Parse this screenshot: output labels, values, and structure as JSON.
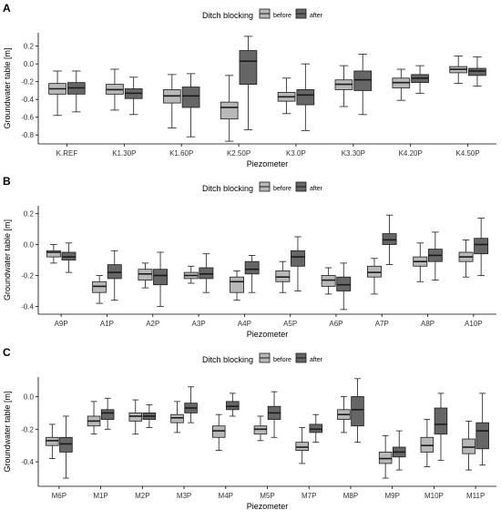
{
  "legend_title": "Ditch blocking",
  "legend_labels": [
    "before",
    "after"
  ],
  "colors": {
    "before": "#b8b8b8",
    "after": "#666666",
    "stroke": "#1a1a1a",
    "axis": "#000000"
  },
  "chart_data": [
    {
      "panel": "A",
      "type": "boxplot",
      "xlabel": "Piezometer",
      "ylabel": "Groundwater table [m]",
      "ylim": [
        -0.9,
        0.35
      ],
      "yticks": [
        0.2,
        0.0,
        -0.2,
        -0.4,
        -0.6,
        -0.8
      ],
      "categories": [
        "K.REF",
        "K1.30P",
        "K1.60P",
        "K2.50P",
        "K3.0P",
        "K3.30P",
        "K4.20P",
        "K4.50P"
      ],
      "series": [
        {
          "name": "before",
          "boxes": [
            [
              -0.58,
              -0.34,
              -0.28,
              -0.22,
              -0.08
            ],
            [
              -0.52,
              -0.34,
              -0.29,
              -0.23,
              -0.06
            ],
            [
              -0.72,
              -0.44,
              -0.36,
              -0.29,
              -0.12
            ],
            [
              -0.87,
              -0.62,
              -0.49,
              -0.43,
              -0.13
            ],
            [
              -0.56,
              -0.42,
              -0.37,
              -0.32,
              -0.16
            ],
            [
              -0.48,
              -0.29,
              -0.23,
              -0.18,
              -0.02
            ],
            [
              -0.41,
              -0.27,
              -0.21,
              -0.16,
              -0.06
            ],
            [
              -0.22,
              -0.1,
              -0.06,
              -0.03,
              0.09
            ]
          ]
        },
        {
          "name": "after",
          "boxes": [
            [
              -0.54,
              -0.34,
              -0.27,
              -0.21,
              -0.08
            ],
            [
              -0.57,
              -0.39,
              -0.33,
              -0.28,
              -0.15
            ],
            [
              -0.82,
              -0.49,
              -0.36,
              -0.26,
              -0.11
            ],
            [
              -0.74,
              -0.23,
              0.03,
              0.15,
              0.31
            ],
            [
              -0.75,
              -0.46,
              -0.35,
              -0.29,
              0.0
            ],
            [
              -0.57,
              -0.3,
              -0.18,
              -0.08,
              0.11
            ],
            [
              -0.33,
              -0.21,
              -0.16,
              -0.12,
              -0.02
            ],
            [
              -0.25,
              -0.13,
              -0.08,
              -0.05,
              0.08
            ]
          ]
        }
      ]
    },
    {
      "panel": "B",
      "type": "boxplot",
      "xlabel": "Piezometer",
      "ylabel": "Groundwater table [m]",
      "ylim": [
        -0.45,
        0.25
      ],
      "yticks": [
        0.2,
        0.0,
        -0.2,
        -0.4
      ],
      "categories": [
        "A9P",
        "A1P",
        "A2P",
        "A3P",
        "A4P",
        "A5P",
        "A6P",
        "A7P",
        "A8P",
        "A10P"
      ],
      "series": [
        {
          "name": "before",
          "boxes": [
            [
              -0.12,
              -0.08,
              -0.05,
              -0.04,
              0.0
            ],
            [
              -0.38,
              -0.31,
              -0.27,
              -0.24,
              -0.2
            ],
            [
              -0.28,
              -0.23,
              -0.19,
              -0.16,
              -0.12
            ],
            [
              -0.25,
              -0.22,
              -0.2,
              -0.18,
              -0.14
            ],
            [
              -0.36,
              -0.31,
              -0.24,
              -0.21,
              -0.17
            ],
            [
              -0.31,
              -0.24,
              -0.21,
              -0.17,
              -0.11
            ],
            [
              -0.32,
              -0.27,
              -0.23,
              -0.2,
              -0.15
            ],
            [
              -0.32,
              -0.21,
              -0.18,
              -0.14,
              -0.09
            ],
            [
              -0.24,
              -0.14,
              -0.11,
              -0.08,
              0.01
            ],
            [
              -0.21,
              -0.11,
              -0.08,
              -0.05,
              0.03
            ]
          ]
        },
        {
          "name": "after",
          "boxes": [
            [
              -0.18,
              -0.1,
              -0.08,
              -0.05,
              0.01
            ],
            [
              -0.36,
              -0.22,
              -0.18,
              -0.13,
              -0.04
            ],
            [
              -0.4,
              -0.26,
              -0.2,
              -0.16,
              -0.05
            ],
            [
              -0.31,
              -0.22,
              -0.19,
              -0.15,
              -0.06
            ],
            [
              -0.31,
              -0.19,
              -0.16,
              -0.11,
              -0.07
            ],
            [
              -0.3,
              -0.14,
              -0.08,
              -0.04,
              0.05
            ],
            [
              -0.42,
              -0.3,
              -0.26,
              -0.21,
              -0.12
            ],
            [
              -0.13,
              0.0,
              0.03,
              0.07,
              0.19
            ],
            [
              -0.23,
              -0.11,
              -0.07,
              -0.03,
              0.08
            ],
            [
              -0.2,
              -0.06,
              0.0,
              0.04,
              0.17
            ]
          ]
        }
      ]
    },
    {
      "panel": "C",
      "type": "boxplot",
      "xlabel": "Piezometer",
      "ylabel": "Groundwater table [m]",
      "ylim": [
        -0.55,
        0.12
      ],
      "yticks": [
        0.0,
        -0.2,
        -0.4
      ],
      "categories": [
        "M6P",
        "M1P",
        "M2P",
        "M3P",
        "M4P",
        "M5P",
        "M7P",
        "M8P",
        "M9P",
        "M10P",
        "M11P"
      ],
      "series": [
        {
          "name": "before",
          "boxes": [
            [
              -0.38,
              -0.3,
              -0.27,
              -0.25,
              -0.17
            ],
            [
              -0.23,
              -0.18,
              -0.15,
              -0.12,
              -0.03
            ],
            [
              -0.23,
              -0.15,
              -0.12,
              -0.1,
              -0.02
            ],
            [
              -0.22,
              -0.16,
              -0.13,
              -0.11,
              -0.03
            ],
            [
              -0.33,
              -0.25,
              -0.21,
              -0.18,
              -0.11
            ],
            [
              -0.27,
              -0.23,
              -0.2,
              -0.18,
              -0.12
            ],
            [
              -0.41,
              -0.33,
              -0.31,
              -0.28,
              -0.19
            ],
            [
              -0.22,
              -0.14,
              -0.11,
              -0.08,
              0.0
            ],
            [
              -0.5,
              -0.41,
              -0.38,
              -0.34,
              -0.24
            ],
            [
              -0.43,
              -0.34,
              -0.3,
              -0.25,
              -0.14
            ],
            [
              -0.45,
              -0.35,
              -0.31,
              -0.26,
              -0.15
            ]
          ]
        },
        {
          "name": "after",
          "boxes": [
            [
              -0.5,
              -0.34,
              -0.29,
              -0.25,
              -0.12
            ],
            [
              -0.2,
              -0.14,
              -0.1,
              -0.08,
              -0.01
            ],
            [
              -0.19,
              -0.14,
              -0.12,
              -0.1,
              -0.05
            ],
            [
              -0.16,
              -0.1,
              -0.07,
              -0.04,
              0.06
            ],
            [
              -0.12,
              -0.08,
              -0.06,
              -0.03,
              0.02
            ],
            [
              -0.25,
              -0.14,
              -0.1,
              -0.06,
              0.03
            ],
            [
              -0.28,
              -0.22,
              -0.2,
              -0.17,
              -0.11
            ],
            [
              -0.28,
              -0.18,
              -0.08,
              0.0,
              0.11
            ],
            [
              -0.45,
              -0.37,
              -0.34,
              -0.31,
              -0.21
            ],
            [
              -0.39,
              -0.23,
              -0.17,
              -0.07,
              0.02
            ],
            [
              -0.42,
              -0.32,
              -0.21,
              -0.16,
              0.02
            ]
          ]
        }
      ]
    }
  ]
}
